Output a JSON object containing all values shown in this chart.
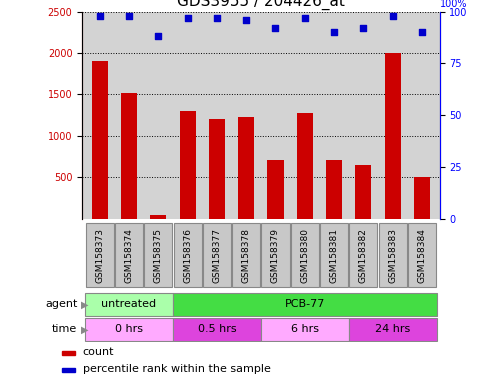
{
  "title": "GDS3955 / 204426_at",
  "samples": [
    "GSM158373",
    "GSM158374",
    "GSM158375",
    "GSM158376",
    "GSM158377",
    "GSM158378",
    "GSM158379",
    "GSM158380",
    "GSM158381",
    "GSM158382",
    "GSM158383",
    "GSM158384"
  ],
  "counts": [
    1900,
    1520,
    50,
    1300,
    1200,
    1230,
    710,
    1280,
    710,
    650,
    2000,
    510
  ],
  "percentiles": [
    98,
    98,
    88,
    97,
    97,
    96,
    92,
    97,
    90,
    92,
    98,
    90
  ],
  "ylim_left": [
    0,
    2500
  ],
  "ylim_right": [
    0,
    100
  ],
  "yticks_left": [
    500,
    1000,
    1500,
    2000,
    2500
  ],
  "yticks_right": [
    0,
    25,
    50,
    75,
    100
  ],
  "agent_labels": [
    {
      "label": "untreated",
      "start": 0,
      "end": 3,
      "color": "#aaffaa"
    },
    {
      "label": "PCB-77",
      "start": 3,
      "end": 12,
      "color": "#44dd44"
    }
  ],
  "time_labels": [
    {
      "label": "0 hrs",
      "start": 0,
      "end": 3,
      "color": "#ffaaff"
    },
    {
      "label": "0.5 hrs",
      "start": 3,
      "end": 6,
      "color": "#dd44dd"
    },
    {
      "label": "6 hrs",
      "start": 6,
      "end": 9,
      "color": "#ffaaff"
    },
    {
      "label": "24 hrs",
      "start": 9,
      "end": 12,
      "color": "#dd44dd"
    }
  ],
  "bar_color": "#cc0000",
  "dot_color": "#0000cc",
  "grid_color": "#000000",
  "title_fontsize": 11,
  "tick_fontsize": 7,
  "label_fontsize": 8,
  "legend_fontsize": 8,
  "background_color": "#ffffff",
  "plot_bg_color": "#d3d3d3",
  "sample_box_color": "#c8c8c8"
}
